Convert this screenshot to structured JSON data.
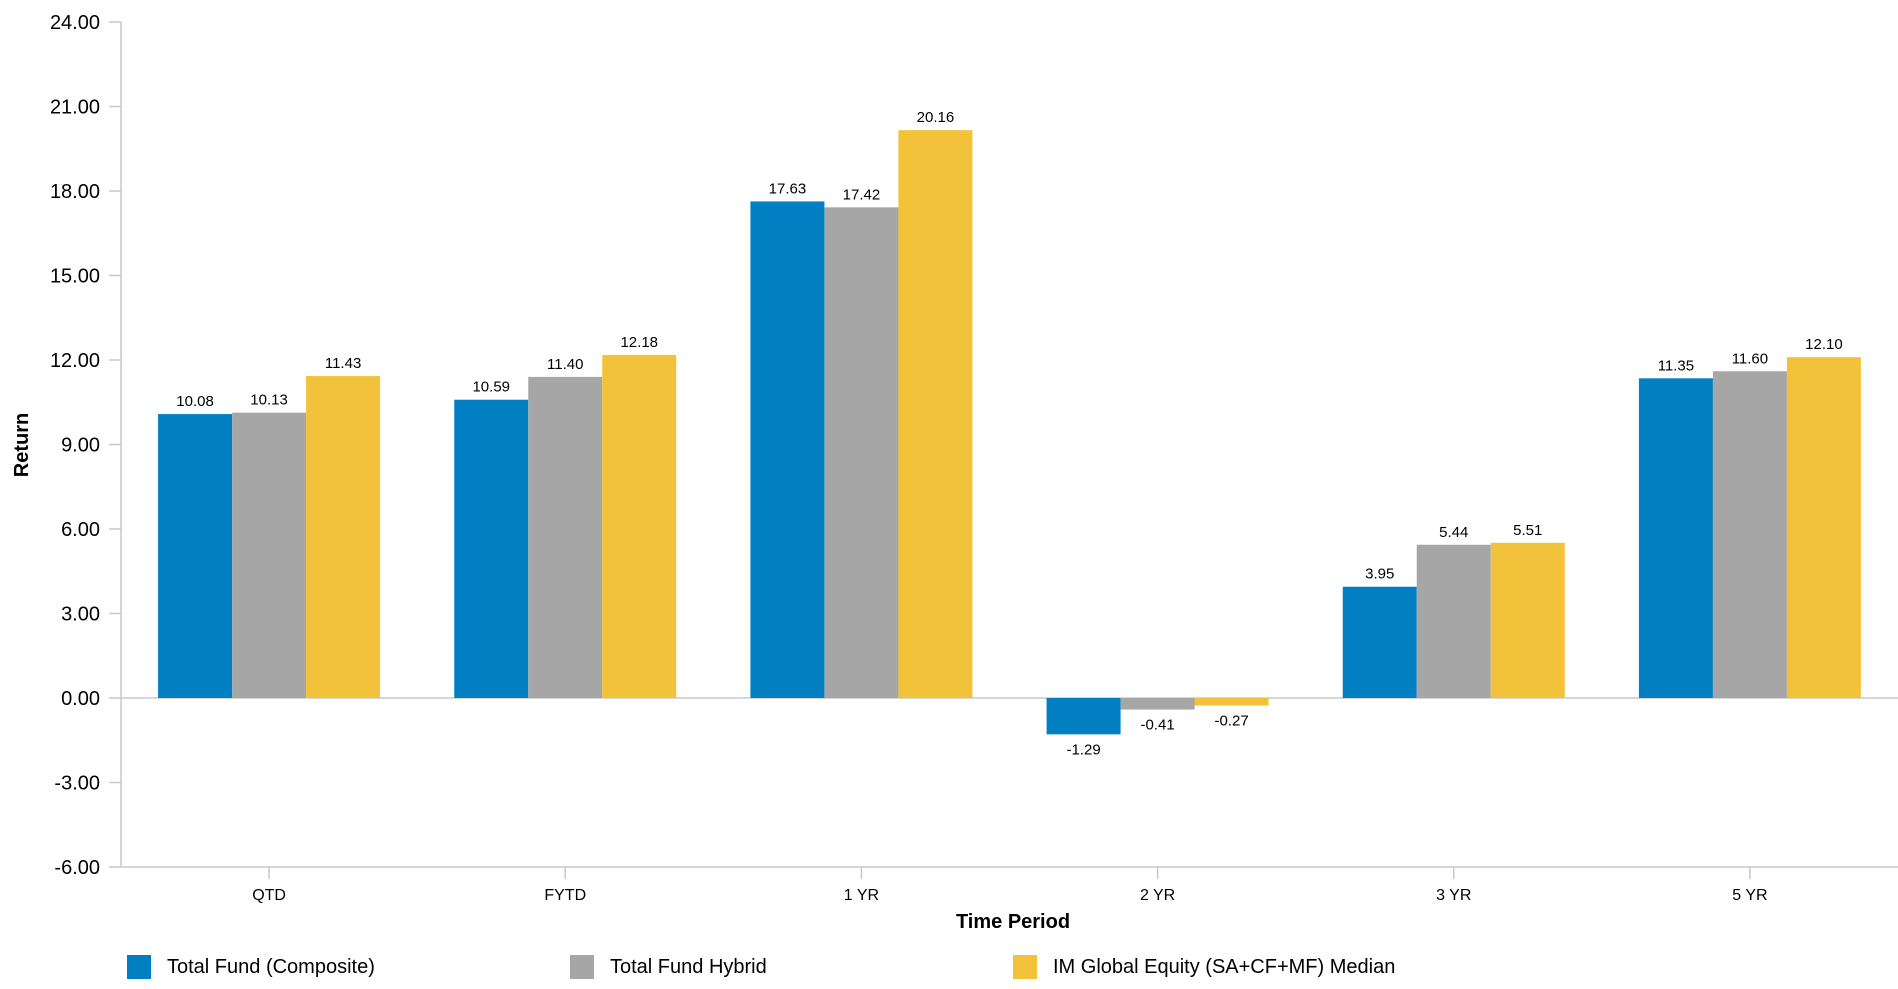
{
  "chart_data": {
    "type": "bar",
    "title": "",
    "xlabel": "Time Period",
    "ylabel": "Return",
    "ylim": [
      -6,
      24
    ],
    "y_ticks": [
      "24.00",
      "21.00",
      "18.00",
      "15.00",
      "12.00",
      "9.00",
      "6.00",
      "3.00",
      "0.00",
      "-3.00",
      "-6.00"
    ],
    "y_tick_values": [
      24,
      21,
      18,
      15,
      12,
      9,
      6,
      3,
      0,
      -3,
      -6
    ],
    "categories": [
      "QTD",
      "FYTD",
      "1 YR",
      "2 YR",
      "3 YR",
      "5 YR"
    ],
    "series": [
      {
        "name": "Total Fund (Composite)",
        "color": "#0080C2",
        "values": [
          10.08,
          10.59,
          17.63,
          -1.29,
          3.95,
          11.35
        ],
        "labels": [
          "10.08",
          "10.59",
          "17.63",
          "-1.29",
          "3.95",
          "11.35"
        ]
      },
      {
        "name": "Total Fund Hybrid",
        "color": "#A6A6A6",
        "values": [
          10.13,
          11.4,
          17.42,
          -0.41,
          5.44,
          11.6
        ],
        "labels": [
          "10.13",
          "11.40",
          "17.42",
          "-0.41",
          "5.44",
          "11.60"
        ]
      },
      {
        "name": "IM Global Equity (SA+CF+MF) Median",
        "color": "#F2C33A",
        "values": [
          11.43,
          12.18,
          20.16,
          -0.27,
          5.51,
          12.1
        ],
        "labels": [
          "11.43",
          "12.18",
          "20.16",
          "-0.27",
          "5.51",
          "12.10"
        ]
      }
    ],
    "grid": false,
    "legend_position": "bottom-left"
  }
}
